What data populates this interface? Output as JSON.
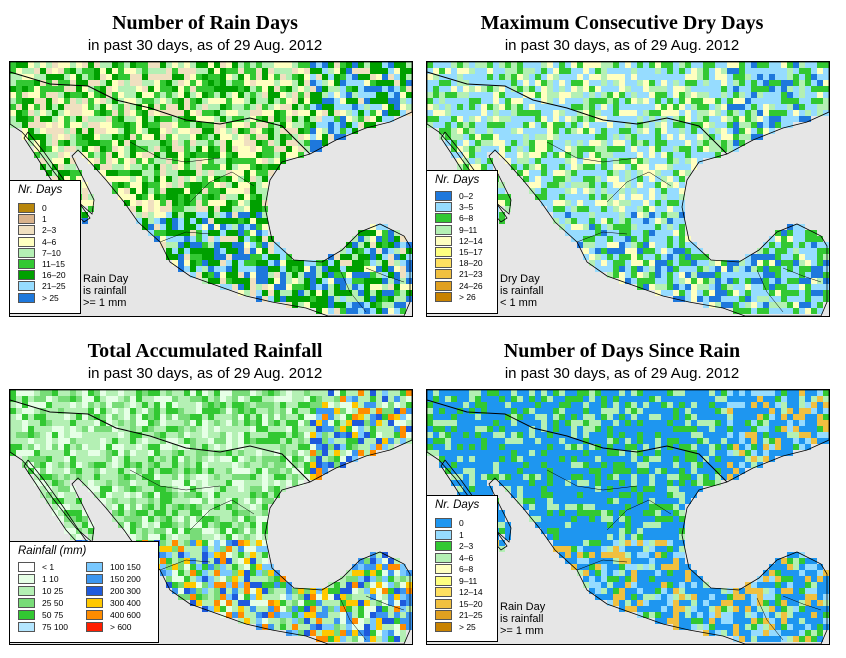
{
  "panels": [
    {
      "title": "Number of Rain Days",
      "subtitle": "in past 30 days, as of  29 Aug. 2012",
      "legend_title": "Nr. Days",
      "legend": [
        {
          "label": "0",
          "color": "#b8860b"
        },
        {
          "label": "1",
          "color": "#d9b38c"
        },
        {
          "label": "2–3",
          "color": "#f0e0c0"
        },
        {
          "label": "4–6",
          "color": "#ffffc0"
        },
        {
          "label": "7–10",
          "color": "#b4f0b4"
        },
        {
          "label": "11–15",
          "color": "#32c832"
        },
        {
          "label": "16–20",
          "color": "#00a000"
        },
        {
          "label": "21–25",
          "color": "#96dcff"
        },
        {
          "label": "> 25",
          "color": "#1e78dc"
        }
      ],
      "note": [
        "Rain Day",
        "is rainfall",
        ">= 1 mm"
      ]
    },
    {
      "title": "Maximum Consecutive Dry Days",
      "subtitle": "in past 30 days, as of  29 Aug. 2012",
      "legend_title": "Nr. Days",
      "legend": [
        {
          "label": "0–2",
          "color": "#1e78dc"
        },
        {
          "label": "3–5",
          "color": "#96dcff"
        },
        {
          "label": "6–8",
          "color": "#32c832"
        },
        {
          "label": "9–11",
          "color": "#b4f0b4"
        },
        {
          "label": "12–14",
          "color": "#ffffc0"
        },
        {
          "label": "15–17",
          "color": "#ffff80"
        },
        {
          "label": "18–20",
          "color": "#ffe060"
        },
        {
          "label": "21–23",
          "color": "#f0c040"
        },
        {
          "label": "24–26",
          "color": "#e0a020"
        },
        {
          "label": "> 26",
          "color": "#c88200"
        }
      ],
      "note": [
        "Dry Day",
        "is rainfall",
        "< 1 mm"
      ]
    },
    {
      "title": "Total Accumulated Rainfall",
      "subtitle": "in past 30 days, as of  29 Aug. 2012",
      "legend_title": "Rainfall (mm)",
      "legend": [
        {
          "label": "< 1",
          "color": "#ffffff"
        },
        {
          "label": "1   10",
          "color": "#e6ffe6"
        },
        {
          "label": "10   25",
          "color": "#b4f0b4"
        },
        {
          "label": "25   50",
          "color": "#78dc78"
        },
        {
          "label": "50   75",
          "color": "#32c832"
        },
        {
          "label": "75  100",
          "color": "#b4e6ff"
        },
        {
          "label": "100  150",
          "color": "#78c8ff"
        },
        {
          "label": "150  200",
          "color": "#3c96f0"
        },
        {
          "label": "200  300",
          "color": "#1e5adc"
        },
        {
          "label": "300  400",
          "color": "#ffc800"
        },
        {
          "label": "400  600",
          "color": "#ff8c00"
        },
        {
          "label": "> 600",
          "color": "#ff1e00"
        }
      ],
      "note": []
    },
    {
      "title": "Number of Days Since Rain",
      "subtitle": "in past 30 days, as of  29 Aug. 2012",
      "legend_title": "Nr. Days",
      "legend": [
        {
          "label": "0",
          "color": "#1e96f0"
        },
        {
          "label": "1",
          "color": "#96dcff"
        },
        {
          "label": "2–3",
          "color": "#32c832"
        },
        {
          "label": "4–6",
          "color": "#b4f0b4"
        },
        {
          "label": "6–8",
          "color": "#ffffc0"
        },
        {
          "label": "9–11",
          "color": "#ffff80"
        },
        {
          "label": "12–14",
          "color": "#ffe060"
        },
        {
          "label": "15–20",
          "color": "#f0c040"
        },
        {
          "label": "21–25",
          "color": "#e0a020"
        },
        {
          "label": "> 25",
          "color": "#c88200"
        }
      ],
      "note": [
        "Rain Day",
        "is rainfall",
        ">= 1 mm"
      ]
    }
  ]
}
